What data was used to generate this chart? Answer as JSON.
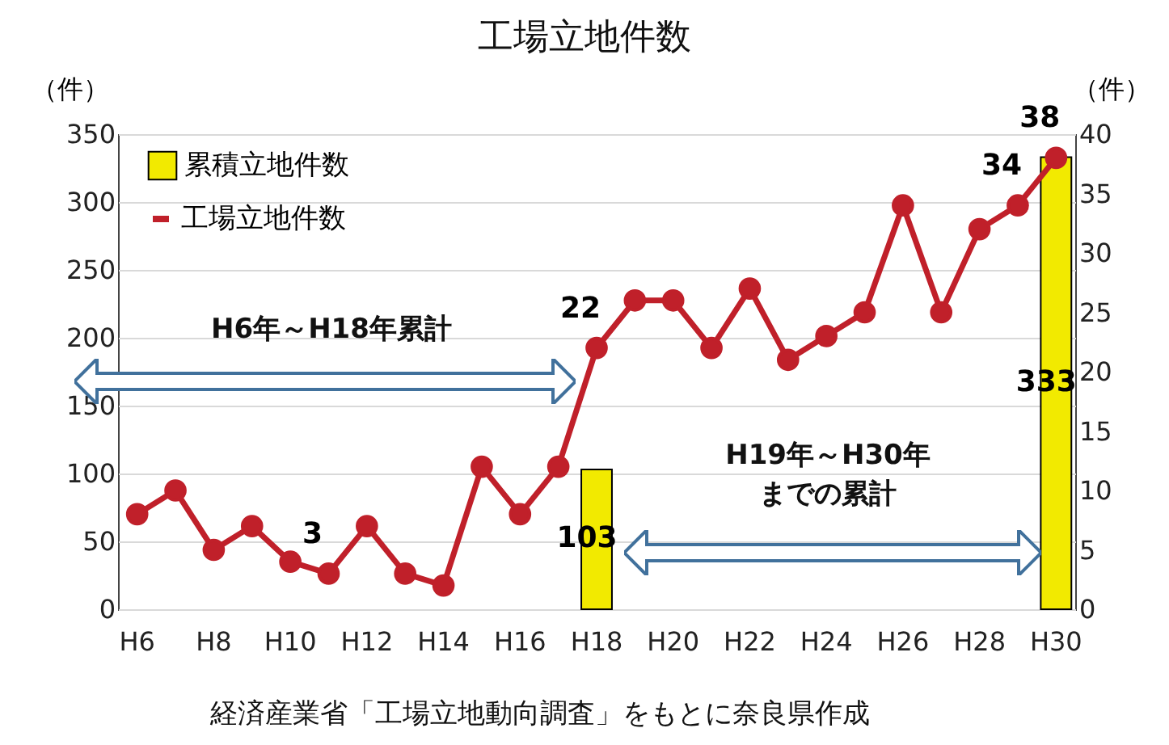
{
  "chart_data": {
    "type": "bar",
    "title": "工場立地件数",
    "categories": [
      "H6",
      null,
      "H8",
      null,
      "H10",
      null,
      "H12",
      null,
      "H14",
      null,
      "H16",
      null,
      "H18",
      null,
      "H20",
      null,
      "H22",
      null,
      "H24",
      null,
      "H26",
      null,
      "H28",
      null,
      "H30"
    ],
    "series": [
      {
        "name": "累積立地件数",
        "color": "#f2ea00",
        "values": [
          null,
          null,
          null,
          null,
          null,
          null,
          null,
          null,
          null,
          null,
          null,
          null,
          103,
          null,
          null,
          null,
          null,
          null,
          null,
          null,
          null,
          null,
          null,
          null,
          333
        ],
        "value_labels": [
          null,
          null,
          null,
          null,
          null,
          null,
          null,
          null,
          null,
          null,
          null,
          null,
          "103",
          null,
          null,
          null,
          null,
          null,
          null,
          null,
          null,
          null,
          null,
          null,
          "333"
        ]
      },
      {
        "name": "工場立地件数",
        "type": "line",
        "axis": "y2",
        "color": "#c0202a",
        "values": [
          8,
          10,
          5,
          7,
          4,
          3,
          7,
          3,
          2,
          12,
          8,
          12,
          22,
          26,
          26,
          22,
          27,
          21,
          23,
          25,
          34,
          25,
          32,
          34,
          38
        ],
        "value_labels": [
          null,
          null,
          null,
          null,
          null,
          "3",
          null,
          null,
          null,
          null,
          null,
          null,
          "22",
          null,
          null,
          null,
          null,
          null,
          null,
          null,
          null,
          null,
          null,
          "34",
          "38"
        ]
      }
    ],
    "ylabel": "（件）",
    "y2label": "（件）",
    "ylim": [
      0,
      350
    ],
    "yticks": [
      0,
      50,
      100,
      150,
      200,
      250,
      300,
      350
    ],
    "y2lim": [
      0,
      40
    ],
    "y2ticks": [
      0,
      5,
      10,
      15,
      20,
      25,
      30,
      35,
      40
    ],
    "grid": "y",
    "legend": "top left",
    "marker": "circle",
    "line_style": "solid",
    "annotations": [
      "H6年～H18年累計",
      "H19年～H30年までの累計",
      "経済産業省「工場立地動向調査」をもとに奈良県作成"
    ]
  }
}
